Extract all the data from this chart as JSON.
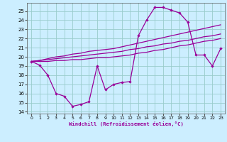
{
  "xlabel": "Windchill (Refroidissement éolien,°C)",
  "background_color": "#cceeff",
  "grid_color": "#99cccc",
  "line_color": "#990099",
  "x_ticks": [
    0,
    1,
    2,
    3,
    4,
    5,
    6,
    7,
    8,
    9,
    10,
    11,
    12,
    13,
    14,
    15,
    16,
    17,
    18,
    19,
    20,
    21,
    22,
    23
  ],
  "y_ticks": [
    14,
    15,
    16,
    17,
    18,
    19,
    20,
    21,
    22,
    23,
    24,
    25
  ],
  "ylim": [
    13.8,
    25.9
  ],
  "xlim": [
    -0.5,
    23.5
  ],
  "series1_x": [
    0,
    1,
    2,
    3,
    4,
    5,
    6,
    7,
    8,
    9,
    10,
    11,
    12,
    13,
    14,
    15,
    16,
    17,
    18,
    19,
    20,
    21,
    22,
    23
  ],
  "series1_y": [
    19.5,
    19.1,
    18.0,
    16.0,
    15.7,
    14.6,
    14.8,
    15.1,
    19.0,
    16.4,
    17.0,
    17.2,
    17.3,
    22.3,
    24.0,
    25.4,
    25.4,
    25.1,
    24.8,
    23.8,
    20.2,
    20.2,
    19.0,
    20.9
  ],
  "series2_x": [
    0,
    1,
    2,
    3,
    4,
    5,
    6,
    7,
    8,
    9,
    10,
    11,
    12,
    13,
    14,
    15,
    16,
    17,
    18,
    19,
    20,
    21,
    22,
    23
  ],
  "series2_y": [
    19.5,
    19.6,
    19.8,
    20.0,
    20.1,
    20.3,
    20.4,
    20.6,
    20.7,
    20.8,
    20.9,
    21.1,
    21.3,
    21.5,
    21.7,
    21.9,
    22.1,
    22.3,
    22.5,
    22.7,
    22.9,
    23.1,
    23.3,
    23.5
  ],
  "series3_x": [
    0,
    1,
    2,
    3,
    4,
    5,
    6,
    7,
    8,
    9,
    10,
    11,
    12,
    13,
    14,
    15,
    16,
    17,
    18,
    19,
    20,
    21,
    22,
    23
  ],
  "series3_y": [
    19.5,
    19.6,
    19.7,
    19.8,
    19.9,
    20.0,
    20.1,
    20.2,
    20.3,
    20.4,
    20.5,
    20.6,
    20.8,
    20.9,
    21.1,
    21.2,
    21.4,
    21.5,
    21.7,
    21.8,
    22.0,
    22.2,
    22.3,
    22.5
  ],
  "series4_x": [
    0,
    1,
    2,
    3,
    4,
    5,
    6,
    7,
    8,
    9,
    10,
    11,
    12,
    13,
    14,
    15,
    16,
    17,
    18,
    19,
    20,
    21,
    22,
    23
  ],
  "series4_y": [
    19.5,
    19.5,
    19.5,
    19.6,
    19.6,
    19.7,
    19.7,
    19.8,
    19.9,
    19.9,
    20.0,
    20.1,
    20.2,
    20.4,
    20.5,
    20.7,
    20.8,
    21.0,
    21.2,
    21.3,
    21.5,
    21.7,
    21.8,
    22.0
  ]
}
